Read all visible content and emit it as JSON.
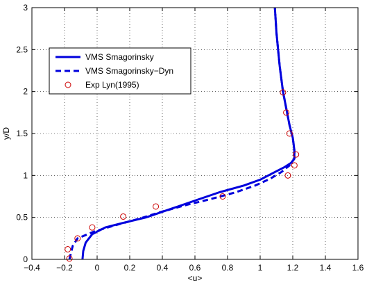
{
  "chart_data": {
    "type": "line",
    "title": "",
    "xlabel": "<u>",
    "ylabel": "y/D",
    "xlim": [
      -0.4,
      1.6
    ],
    "ylim": [
      0,
      3
    ],
    "xticks": [
      "−0.4",
      "−0.2",
      "0",
      "0.2",
      "0.4",
      "0.6",
      "0.8",
      "1",
      "1.2",
      "1.4",
      "1.6"
    ],
    "yticks": [
      "0",
      "0.5",
      "1",
      "1.5",
      "2",
      "2.5",
      "3"
    ],
    "grid": true,
    "legend_position": "top-left",
    "series": [
      {
        "name": "VMS Smagorinsky",
        "style": "solid",
        "color": "#0000dd",
        "points": [
          [
            -0.09,
            0.0
          ],
          [
            -0.085,
            0.1
          ],
          [
            -0.07,
            0.2
          ],
          [
            -0.03,
            0.3
          ],
          [
            0.05,
            0.38
          ],
          [
            0.15,
            0.43
          ],
          [
            0.3,
            0.5
          ],
          [
            0.45,
            0.6
          ],
          [
            0.6,
            0.7
          ],
          [
            0.75,
            0.8
          ],
          [
            0.9,
            0.88
          ],
          [
            1.0,
            0.95
          ],
          [
            1.08,
            1.03
          ],
          [
            1.15,
            1.1
          ],
          [
            1.19,
            1.15
          ],
          [
            1.21,
            1.2
          ],
          [
            1.21,
            1.3
          ],
          [
            1.2,
            1.45
          ],
          [
            1.18,
            1.6
          ],
          [
            1.16,
            1.8
          ],
          [
            1.14,
            2.0
          ],
          [
            1.12,
            2.3
          ],
          [
            1.1,
            2.7
          ],
          [
            1.09,
            3.0
          ]
        ]
      },
      {
        "name": "VMS Smagorinsky−Dyn",
        "style": "dashed",
        "color": "#0000dd",
        "points": [
          [
            -0.17,
            0.0
          ],
          [
            -0.16,
            0.08
          ],
          [
            -0.15,
            0.16
          ],
          [
            -0.12,
            0.25
          ],
          [
            -0.02,
            0.33
          ],
          [
            0.1,
            0.4
          ],
          [
            0.25,
            0.48
          ],
          [
            0.4,
            0.57
          ],
          [
            0.55,
            0.65
          ],
          [
            0.7,
            0.72
          ],
          [
            0.85,
            0.8
          ],
          [
            0.97,
            0.88
          ],
          [
            1.06,
            0.96
          ],
          [
            1.13,
            1.04
          ],
          [
            1.18,
            1.12
          ],
          [
            1.21,
            1.2
          ],
          [
            1.21,
            1.3
          ],
          [
            1.2,
            1.45
          ],
          [
            1.18,
            1.6
          ],
          [
            1.16,
            1.8
          ],
          [
            1.14,
            2.0
          ],
          [
            1.12,
            2.3
          ],
          [
            1.1,
            2.7
          ],
          [
            1.09,
            3.0
          ]
        ]
      },
      {
        "name": "Exp Lyn(1995)",
        "style": "markers",
        "marker": "circle",
        "color": "#cc0000",
        "points": [
          [
            -0.17,
            0.01
          ],
          [
            -0.18,
            0.12
          ],
          [
            -0.12,
            0.25
          ],
          [
            -0.03,
            0.38
          ],
          [
            0.16,
            0.51
          ],
          [
            0.36,
            0.63
          ],
          [
            0.77,
            0.75
          ],
          [
            1.17,
            1.0
          ],
          [
            1.21,
            1.12
          ],
          [
            1.22,
            1.25
          ],
          [
            1.18,
            1.5
          ],
          [
            1.16,
            1.75
          ],
          [
            1.14,
            1.99
          ]
        ]
      }
    ]
  }
}
